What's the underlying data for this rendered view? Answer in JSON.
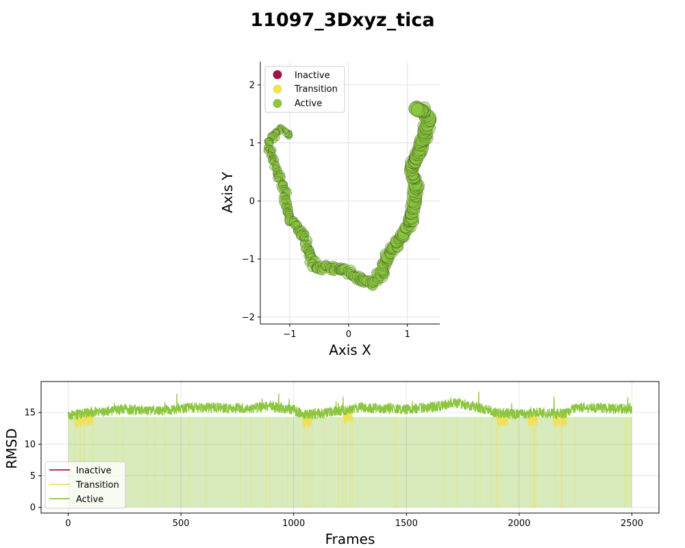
{
  "title": "11097_3Dxyz_tica",
  "legend_labels": [
    "Inactive",
    "Transition",
    "Active"
  ],
  "colors": {
    "inactive": "#9e1447",
    "transition": "#f0e05a",
    "active": "#8cc63f",
    "edge": "#1a2a10"
  },
  "chart_data": [
    {
      "type": "scatter",
      "xlabel": "Axis X",
      "ylabel": "Axis Y",
      "xlim": [
        -1.5,
        1.55
      ],
      "ylim": [
        -2.12,
        2.4
      ],
      "xticks": [
        -1,
        0,
        1
      ],
      "yticks": [
        -2,
        -1,
        0,
        1,
        2
      ],
      "xtick_labels": [
        "−1",
        "0",
        "1"
      ],
      "ytick_labels": [
        "−2",
        "−1",
        "0",
        "1",
        "2"
      ],
      "grid": true,
      "legend": "top-left",
      "series": [
        {
          "name": "Inactive",
          "color": "#9e1447",
          "points": []
        },
        {
          "name": "Transition",
          "color": "#f0e05a",
          "points": []
        },
        {
          "name": "Active",
          "color": "#8cc63f",
          "path": [
            [
              -1.0,
              1.15
            ],
            [
              -1.15,
              1.25
            ],
            [
              -1.3,
              1.1
            ],
            [
              -1.38,
              1.0
            ],
            [
              -1.3,
              0.75
            ],
            [
              -1.2,
              0.45
            ],
            [
              -1.08,
              0.15
            ],
            [
              -1.05,
              -0.15
            ],
            [
              -0.98,
              -0.35
            ],
            [
              -0.78,
              -0.55
            ],
            [
              -0.7,
              -0.85
            ],
            [
              -0.55,
              -1.15
            ],
            [
              -0.3,
              -1.15
            ],
            [
              -0.05,
              -1.2
            ],
            [
              0.18,
              -1.35
            ],
            [
              0.42,
              -1.42
            ],
            [
              0.58,
              -1.2
            ],
            [
              0.68,
              -0.9
            ],
            [
              0.88,
              -0.65
            ],
            [
              1.05,
              -0.4
            ],
            [
              1.12,
              0.0
            ],
            [
              1.15,
              0.35
            ],
            [
              1.05,
              0.55
            ],
            [
              1.2,
              0.85
            ],
            [
              1.3,
              1.2
            ],
            [
              1.35,
              1.4
            ],
            [
              1.25,
              1.6
            ],
            [
              1.15,
              1.55
            ]
          ]
        }
      ]
    },
    {
      "type": "line",
      "xlabel": "Frames",
      "ylabel": "RMSD",
      "xlim": [
        -120,
        2620
      ],
      "ylim": [
        -0.9,
        19.9
      ],
      "xticks": [
        0,
        500,
        1000,
        1500,
        2000,
        2500
      ],
      "yticks": [
        0,
        5,
        10,
        15
      ],
      "xtick_labels": [
        "0",
        "500",
        "1000",
        "1500",
        "2000",
        "2500"
      ],
      "ytick_labels": [
        "0",
        "5",
        "10",
        "15"
      ],
      "grid": true,
      "legend": "bottom-left",
      "frames": 2500,
      "baseline_profile": {
        "x": [
          0,
          100,
          250,
          400,
          550,
          700,
          800,
          900,
          1000,
          1050,
          1150,
          1300,
          1500,
          1650,
          1700,
          1800,
          1900,
          2000,
          2100,
          2200,
          2250,
          2350,
          2500
        ],
        "y": [
          14.5,
          15.0,
          15.5,
          15.3,
          15.8,
          15.7,
          15.6,
          16.0,
          15.4,
          14.6,
          15.0,
          15.8,
          15.5,
          16.0,
          16.6,
          16.0,
          15.0,
          14.7,
          15.0,
          14.8,
          15.8,
          15.7,
          15.5
        ]
      },
      "transition_dips": [
        [
          30,
          110
        ],
        [
          1040,
          1080
        ],
        [
          1220,
          1260
        ],
        [
          1900,
          1950
        ],
        [
          2040,
          2080
        ],
        [
          2150,
          2210
        ]
      ],
      "series": [
        {
          "name": "Inactive",
          "color": "#9e1447",
          "values": []
        },
        {
          "name": "Transition",
          "color": "#f0e05a"
        },
        {
          "name": "Active",
          "color": "#8cc63f"
        }
      ]
    }
  ]
}
